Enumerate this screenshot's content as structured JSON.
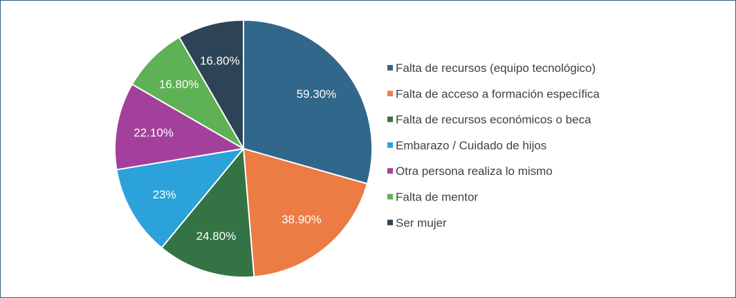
{
  "chart_data": {
    "type": "pie",
    "title": "",
    "legend_position": "right",
    "slices": [
      {
        "label": "Falta de recursos (equipo tecnológico)",
        "value": 59.3,
        "display": "59.30%",
        "color": "#30678a"
      },
      {
        "label": "Falta de acceso a formación específica",
        "value": 38.9,
        "display": "38.90%",
        "color": "#ec7b44"
      },
      {
        "label": "Falta de recursos económicos o beca",
        "value": 24.8,
        "display": "24.80%",
        "color": "#347344"
      },
      {
        "label": "Embarazo / Cuidado de hijos",
        "value": 23,
        "display": "23%",
        "color": "#2ba3da"
      },
      {
        "label": "Otra persona realiza lo mismo",
        "value": 22.1,
        "display": "22.10%",
        "color": "#a3409b"
      },
      {
        "label": "Falta de mentor",
        "value": 16.8,
        "display": "16.80%",
        "color": "#5eb154"
      },
      {
        "label": "Ser mujer",
        "value": 16.8,
        "display": "16.80%",
        "color": "#2d4456"
      }
    ]
  }
}
